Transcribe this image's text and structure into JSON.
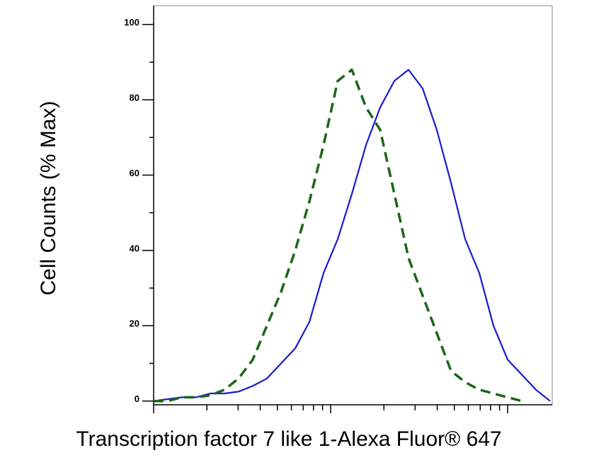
{
  "chart_data": {
    "type": "line",
    "y_label": "Cell Counts (% Max)",
    "x_label": "Transcription factor 7 like 1-Alexa Fluor® 647",
    "x_scale": "log",
    "x": [
      1,
      1.202,
      1.445,
      1.738,
      2.089,
      2.512,
      3.02,
      3.631,
      4.365,
      5.248,
      6.31,
      7.586,
      9.12,
      10.96,
      13.18,
      15.85,
      19.05,
      22.91,
      27.54,
      33.11,
      39.81,
      47.86,
      57.54,
      69.18,
      83.18,
      100,
      120.2,
      144.5,
      173.8
    ],
    "xlim": [
      1,
      178.6
    ],
    "xticks": [
      1,
      10,
      100
    ],
    "xminorticks": [
      2,
      3,
      4,
      5,
      6,
      7,
      8,
      9,
      20,
      30,
      40,
      50,
      60,
      70,
      80,
      90
    ],
    "ylim": [
      -1,
      105
    ],
    "yticks": [
      0,
      20,
      40,
      60,
      80,
      100
    ],
    "yminorticks": [
      10,
      30,
      50,
      70,
      90
    ],
    "series": [
      {
        "color": "#1a1ad0",
        "dash": false,
        "values": [
          0,
          0.5,
          1,
          1,
          2,
          2,
          2.5,
          4,
          6,
          10,
          14,
          21,
          34,
          43,
          55,
          68,
          78,
          85,
          88,
          83,
          72,
          58,
          43,
          34,
          20,
          11,
          7,
          3,
          0
        ]
      },
      {
        "color": "#1a661a",
        "dash": true,
        "values": [
          0,
          0,
          1,
          1,
          1.5,
          3,
          6,
          11,
          20,
          29,
          40,
          53,
          68,
          85,
          88,
          78,
          72,
          55,
          38,
          28,
          18,
          8,
          5,
          3,
          2,
          1,
          0,
          null,
          null
        ]
      }
    ]
  }
}
